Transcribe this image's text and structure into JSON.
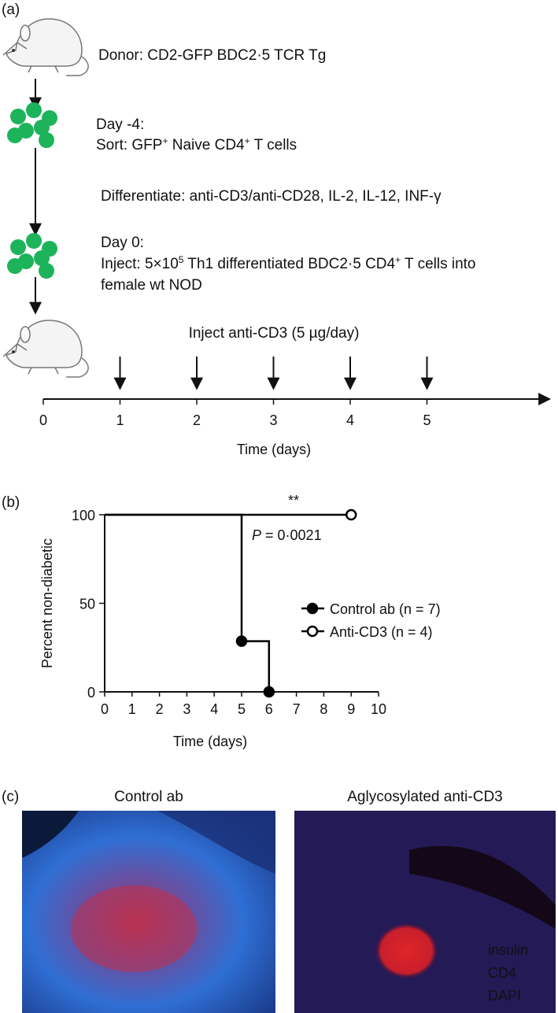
{
  "panel_a": {
    "label": "(a)",
    "donor": "Donor: CD2-GFP BDC2·5 TCR Tg",
    "day_minus4": "Day -4:",
    "sort": [
      "Sort: GFP",
      "+",
      " Naive CD4",
      "+",
      " T cells"
    ],
    "differentiate": "Differentiate: anti-CD3/anti-CD28, IL-2, IL-12, INF-γ",
    "day0": "Day 0:",
    "inject": [
      "Inject: 5×10",
      "5",
      " Th1 differentiated BDC2·5 CD4",
      "+",
      " T cells into"
    ],
    "recipient": "female wt NOD",
    "treatment": "Inject anti-CD3 (5 µg/day)",
    "timeline": {
      "xlim": [
        0,
        6.6
      ],
      "xticks": [
        0,
        1,
        2,
        3,
        4,
        5
      ],
      "injection_days": [
        1,
        2,
        3,
        4,
        5
      ],
      "xlabel": "Time (days)"
    }
  },
  "chart_data": {
    "type": "line",
    "panel_label": "(b)",
    "step": "post",
    "xlabel": "Time (days)",
    "ylabel": "Percent non-diabetic",
    "xlim": [
      0,
      10
    ],
    "ylim": [
      0,
      100
    ],
    "xticks": [
      0,
      1,
      2,
      3,
      4,
      5,
      6,
      7,
      8,
      9,
      10
    ],
    "yticks": [
      0,
      50,
      100
    ],
    "series": [
      {
        "name": "Control ab (n = 7)",
        "color": "#000000",
        "marker_fill": "#000000",
        "x": [
          0,
          5,
          6
        ],
        "values": [
          100,
          28.6,
          0
        ]
      },
      {
        "name": "Anti-CD3 (n = 4)",
        "color": "#000000",
        "marker_fill": "#ffffff",
        "x": [
          0,
          9
        ],
        "values": [
          100,
          100
        ]
      }
    ],
    "legend": "right",
    "annotations": {
      "significance": "**",
      "p_symbol": "P",
      "p_value": " = 0·0021"
    }
  },
  "panel_c": {
    "label": "(c)",
    "titles": [
      "Control ab",
      "Aglycosylated anti-CD3"
    ],
    "channels": [
      {
        "name": "insulin",
        "color": "#e8242a"
      },
      {
        "name": "CD4",
        "color": "#44d444"
      },
      {
        "name": "DAPI",
        "color": "#3a6fe0"
      }
    ]
  }
}
